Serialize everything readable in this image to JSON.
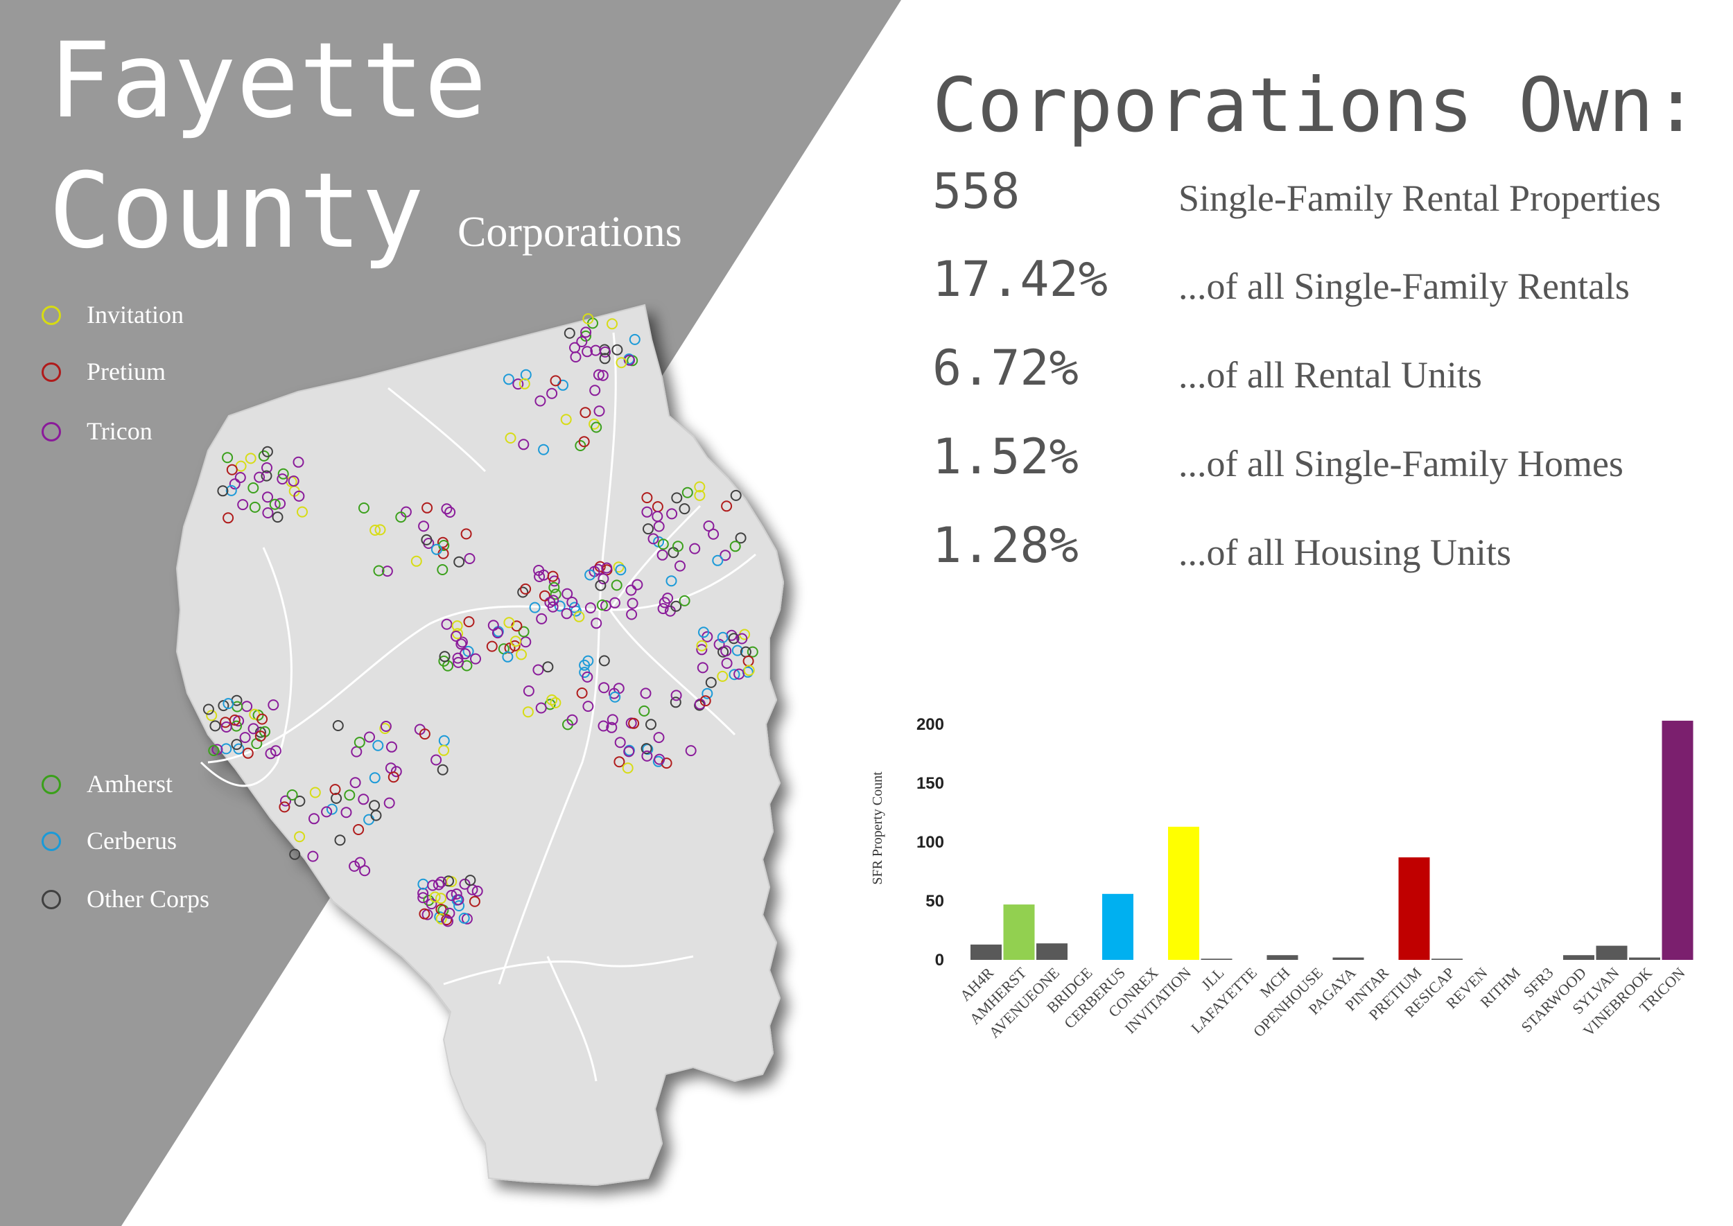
{
  "header": {
    "title_line1": "Fayette",
    "title_line2": "County",
    "subtitle": "Corporations"
  },
  "legend_top": [
    {
      "label": "Invitation",
      "color": "#d7dc12"
    },
    {
      "label": "Pretium",
      "color": "#b01a1a"
    },
    {
      "label": "Tricon",
      "color": "#8a1a9a"
    }
  ],
  "legend_bottom": [
    {
      "label": "Amherst",
      "color": "#3aa01a"
    },
    {
      "label": "Cerberus",
      "color": "#1a9ad8"
    },
    {
      "label": "Other Corps",
      "color": "#404040"
    }
  ],
  "stats": {
    "heading": "Corporations Own:",
    "items": [
      {
        "value": "558",
        "desc": "Single-Family Rental Properties"
      },
      {
        "value": "17.42%",
        "desc": "...of all Single-Family Rentals"
      },
      {
        "value": "6.72%",
        "desc": "...of all Rental Units"
      },
      {
        "value": "1.52%",
        "desc": "...of all Single-Family Homes"
      },
      {
        "value": "1.28%",
        "desc": "...of all Housing Units"
      }
    ]
  },
  "colors": {
    "background_panel": "#999999",
    "map_fill": "#e0e0e0",
    "text_dark": "#555555",
    "bar_other": "#595959",
    "bar_amherst": "#92d050",
    "bar_cerberus": "#00b0f0",
    "bar_invitation": "#ffff00",
    "bar_pretium": "#c00000",
    "bar_tricon": "#7b1f6e"
  },
  "chart_data": {
    "type": "bar",
    "ylabel": "SFR Property Count",
    "ylim": [
      0,
      210
    ],
    "yticks": [
      0,
      50,
      100,
      150,
      200
    ],
    "categories": [
      "AH4R",
      "AMHERST",
      "AVENUEONE",
      "BRIDGE",
      "CERBERUS",
      "CONREX",
      "INVITATION",
      "JLL",
      "LAFAYETTE",
      "MCH",
      "OPENHOUSE",
      "PAGAYA",
      "PINTAR",
      "PRETIUM",
      "RESICAP",
      "REVEN",
      "RITHM",
      "SFR3",
      "STARWOOD",
      "SYLVAN",
      "VINEBROOK",
      "TRICON"
    ],
    "values": [
      13,
      47,
      14,
      0,
      56,
      0,
      113,
      1,
      0,
      4,
      0,
      2,
      0,
      87,
      1,
      0,
      0,
      0,
      4,
      12,
      2,
      203
    ],
    "bar_colors": [
      "#595959",
      "#92d050",
      "#595959",
      "#595959",
      "#00b0f0",
      "#595959",
      "#ffff00",
      "#595959",
      "#595959",
      "#595959",
      "#595959",
      "#595959",
      "#595959",
      "#c00000",
      "#595959",
      "#595959",
      "#595959",
      "#595959",
      "#595959",
      "#595959",
      "#595959",
      "#7b1f6e"
    ],
    "grid": false,
    "legend": "none"
  }
}
